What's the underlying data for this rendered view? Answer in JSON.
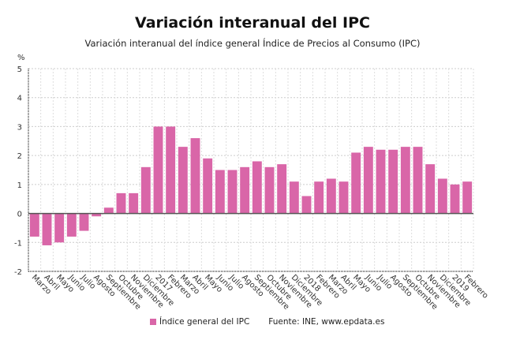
{
  "chart_data": {
    "type": "bar",
    "title": "Variación interanual del IPC",
    "subtitle": "Variación interanual del índice general Índice de Precios al Consumo (IPC)",
    "ylabel": "%",
    "xlabel": "",
    "ylim": [
      -2,
      5
    ],
    "yticks": [
      5,
      4,
      3,
      2,
      1,
      0,
      -1,
      -2
    ],
    "grid": true,
    "legend_position": "bottom",
    "color": "#d966a8",
    "categories": [
      "Marzo",
      "Abril",
      "Mayo",
      "Junio",
      "Julio",
      "Agosto",
      "Septiembre",
      "Octubre",
      "Noviembre",
      "Diciembre",
      "2017",
      "Febrero",
      "Marzo",
      "Abril",
      "Mayo",
      "Junio",
      "Julio",
      "Agosto",
      "Septiembre",
      "Octubre",
      "Noviembre",
      "Diciembre",
      "2018",
      "Febrero",
      "Marzo",
      "Abril",
      "Mayo",
      "Junio",
      "Julio",
      "Agosto",
      "Septiembre",
      "Octubre",
      "Noviembre",
      "Diciembre",
      "2019",
      "Febrero"
    ],
    "series": [
      {
        "name": "Índice general del IPC",
        "values": [
          -0.8,
          -1.1,
          -1.0,
          -0.8,
          -0.6,
          -0.1,
          0.2,
          0.7,
          0.7,
          1.6,
          3.0,
          3.0,
          2.3,
          2.6,
          1.9,
          1.5,
          1.5,
          1.6,
          1.8,
          1.6,
          1.7,
          1.1,
          0.6,
          1.1,
          1.2,
          1.1,
          2.1,
          2.3,
          2.2,
          2.2,
          2.3,
          2.3,
          1.7,
          1.2,
          1.0,
          1.1
        ]
      }
    ],
    "source": "Fuente: INE, www.epdata.es"
  }
}
